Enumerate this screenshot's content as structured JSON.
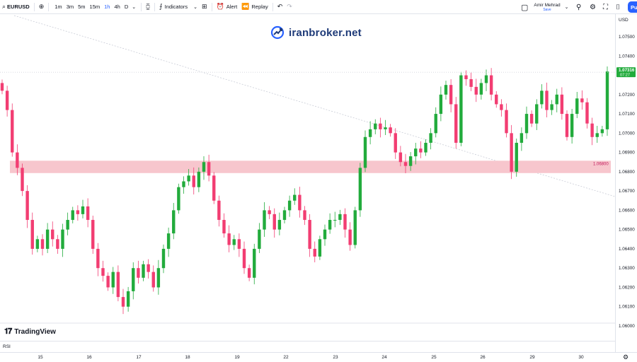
{
  "toolbar": {
    "symbol": "EURUSD",
    "intervals": [
      "1m",
      "3m",
      "5m",
      "15m",
      "1h",
      "4h",
      "D"
    ],
    "active_interval": "1h",
    "indicators_label": "Indicators",
    "alert_label": "Alert",
    "replay_label": "Replay",
    "user_name": "Amir Mehrad",
    "user_status": "Save",
    "publish_label": "Pu"
  },
  "watermark": {
    "text": "iranbroker.net"
  },
  "price_axis": {
    "currency": "USD",
    "ticks": [
      "1.07500",
      "1.07400",
      "1.07300",
      "1.07200",
      "1.07100",
      "1.07000",
      "1.06900",
      "1.06800",
      "1.06700",
      "1.06600",
      "1.06500",
      "1.06400",
      "1.06300",
      "1.06200",
      "1.06100",
      "1.06000"
    ],
    "current_price": "1.07316",
    "countdown": "07:27"
  },
  "zone": {
    "label": "1.06800",
    "color": "#f7c6cd"
  },
  "time_axis": {
    "ticks": [
      "15",
      "16",
      "17",
      "18",
      "19",
      "22",
      "23",
      "24",
      "25",
      "26",
      "29",
      "30"
    ]
  },
  "bottom": {
    "brand": "TradingView",
    "pane_label": "RSI"
  },
  "colors": {
    "up": "#22ab3c",
    "down": "#f23d72",
    "accent": "#2962ff",
    "price_tag": "#22ab3c"
  },
  "chart_data": {
    "type": "candlestick",
    "symbol": "EURUSD",
    "interval": "1h",
    "ylim": [
      1.06,
      1.0755
    ],
    "price_line": 1.07316,
    "zone": [
      1.06793,
      1.06857
    ],
    "closes": [
      1.0722,
      1.0712,
      1.069,
      1.0682,
      1.067,
      1.0655,
      1.064,
      1.0645,
      1.064,
      1.065,
      1.0645,
      1.064,
      1.065,
      1.0655,
      1.066,
      1.0658,
      1.0662,
      1.0655,
      1.064,
      1.063,
      1.0626,
      1.062,
      1.0628,
      1.0615,
      1.061,
      1.0618,
      1.063,
      1.0625,
      1.0632,
      1.0628,
      1.062,
      1.063,
      1.064,
      1.0648,
      1.066,
      1.0672,
      1.0675,
      1.0678,
      1.0672,
      1.068,
      1.0685,
      1.0678,
      1.0665,
      1.0655,
      1.0648,
      1.0642,
      1.0645,
      1.064,
      1.063,
      1.0625,
      1.064,
      1.065,
      1.066,
      1.0658,
      1.065,
      1.0655,
      1.066,
      1.0665,
      1.0668,
      1.066,
      1.0655,
      1.064,
      1.0636,
      1.0645,
      1.065,
      1.0655,
      1.0655,
      1.0658,
      1.065,
      1.0642,
      1.066,
      1.0682,
      1.0698,
      1.0702,
      1.0705,
      1.0702,
      1.0703,
      1.07,
      1.069,
      1.0685,
      1.0683,
      1.0688,
      1.0692,
      1.069,
      1.0695,
      1.07,
      1.071,
      1.072,
      1.0725,
      1.0715,
      1.0695,
      1.073,
      1.0728,
      1.0724,
      1.072,
      1.0726,
      1.073,
      1.072,
      1.0715,
      1.0712,
      1.07,
      1.068,
      1.0695,
      1.07,
      1.071,
      1.0705,
      1.0715,
      1.0722,
      1.0712,
      1.0715,
      1.072,
      1.071,
      1.0698,
      1.071,
      1.0718,
      1.0716,
      1.0705,
      1.0698,
      1.07,
      1.0702,
      1.0732
    ]
  }
}
